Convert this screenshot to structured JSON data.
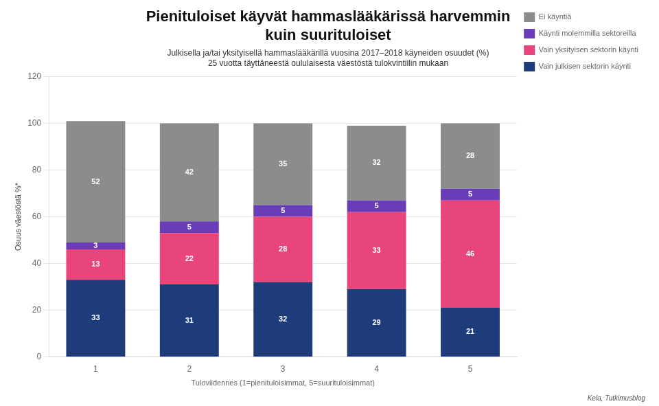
{
  "chart_data": {
    "type": "bar",
    "title": "Pienituloiset käyvät hammaslääkärissä harvemmin\nkuin suurituloiset",
    "subtitle": [
      "Julkisella ja/tai yksityisellä hammaslääkärillä vuosina 2017–2018 käyneiden osuudet (%)",
      "25 vuotta täyttäneestä oululaisesta väestöstä tulokvintiilin mukaan"
    ],
    "ylabel": "Osuus väestöstä %*",
    "xlabel": "Tuloviidennes (1=pienituloisimmat, 5=suurituloisimmat)",
    "source": "Kela, Tutkimusblog",
    "categories": [
      "1",
      "2",
      "3",
      "4",
      "5"
    ],
    "series": [
      {
        "name": "Vain julkisen sektorin käynti",
        "color": "#1f3c7a",
        "values": [
          33,
          31,
          32,
          29,
          21
        ]
      },
      {
        "name": "Vain yksityisen sektorin käynti",
        "color": "#e8457a",
        "values": [
          13,
          22,
          28,
          33,
          46
        ]
      },
      {
        "name": "Käynti molemmilla sektoreilla",
        "color": "#6a3db8",
        "values": [
          3,
          5,
          5,
          5,
          5
        ]
      },
      {
        "name": "Ei käyntiä",
        "color": "#8c8c8c",
        "values": [
          52,
          42,
          35,
          32,
          28
        ]
      }
    ],
    "stacked": true,
    "data_labels": true,
    "ylim": [
      0,
      120
    ],
    "yticks": [
      0,
      20,
      40,
      60,
      80,
      100,
      120
    ],
    "grid": true,
    "legend": "right"
  }
}
